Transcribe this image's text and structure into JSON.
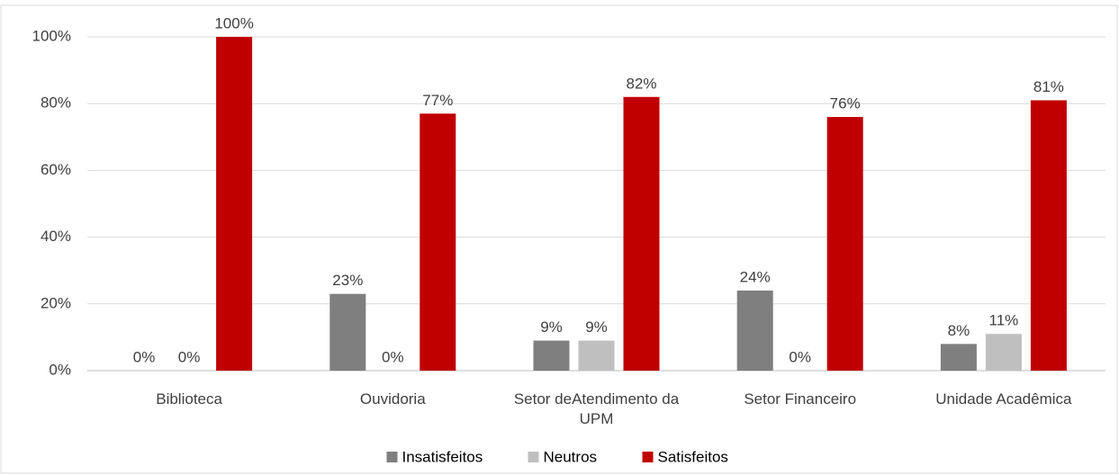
{
  "chart_data": {
    "type": "bar",
    "categories": [
      "Biblioteca",
      "Ouvidoria",
      "Setor deAtendimento da UPM",
      "Setor Financeiro",
      "Unidade Acadêmica"
    ],
    "series": [
      {
        "name": "Insatisfeitos",
        "color": "#7f7f7f",
        "values": [
          0,
          23,
          9,
          24,
          8
        ],
        "value_labels": [
          "0%",
          "23%",
          "9%",
          "24%",
          "8%"
        ]
      },
      {
        "name": "Neutros",
        "color": "#bfbfbf",
        "values": [
          0,
          0,
          9,
          0,
          11
        ],
        "value_labels": [
          "0%",
          "0%",
          "9%",
          "0%",
          "11%"
        ]
      },
      {
        "name": "Satisfeitos",
        "color": "#c00000",
        "values": [
          100,
          77,
          82,
          76,
          81
        ],
        "value_labels": [
          "100%",
          "77%",
          "82%",
          "76%",
          "81%"
        ]
      }
    ],
    "ylim": [
      0,
      100
    ],
    "yticks": [
      {
        "value": 0,
        "label": "0%"
      },
      {
        "value": 20,
        "label": "20%"
      },
      {
        "value": 40,
        "label": "40%"
      },
      {
        "value": 60,
        "label": "60%"
      },
      {
        "value": 80,
        "label": "80%"
      },
      {
        "value": 100,
        "label": "100%"
      }
    ],
    "grid": true,
    "legend": "bottom"
  }
}
